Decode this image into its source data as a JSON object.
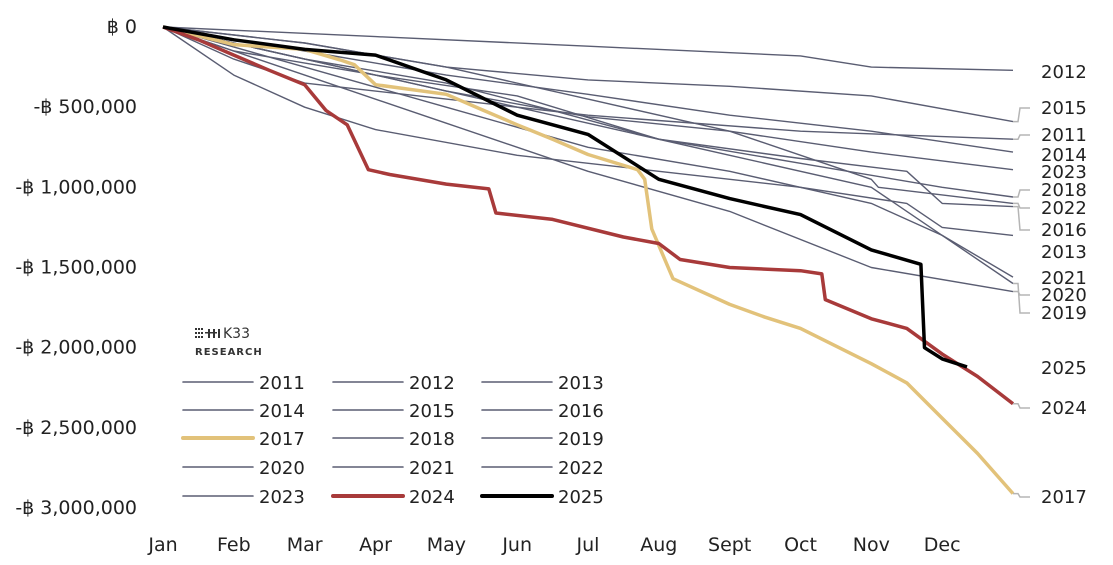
{
  "chart_data": {
    "type": "line",
    "title": "",
    "xlabel": "",
    "ylabel": "",
    "x_unit": "month (0 = start of Jan, 12 = end of Dec)",
    "x_tick_labels": [
      "Jan",
      "Feb",
      "Mar",
      "Apr",
      "May",
      "Jun",
      "Jul",
      "Aug",
      "Sept",
      "Oct",
      "Nov",
      "Dec"
    ],
    "y_tick_values": [
      0,
      -500000,
      -1000000,
      -1500000,
      -2000000,
      -2500000,
      -3000000
    ],
    "y_tick_labels": [
      "฿ 0",
      "-฿ 500,000",
      "-฿ 1,000,000",
      "-฿ 1,500,000",
      "-฿ 2,000,000",
      "-฿ 2,500,000",
      "-฿ 3,000,000"
    ],
    "ylim": [
      -3000000,
      0
    ],
    "xlim": [
      0,
      12
    ],
    "grid": false,
    "legend_position": "bottom-left",
    "logo_text": "K33 RESEARCH",
    "colors": {
      "default": "#5a5d72",
      "2017": "#e2c27a",
      "2024": "#a83a3a",
      "2025": "#000000",
      "leader": "#b5b5b5"
    },
    "series": [
      {
        "name": "2011",
        "points": [
          [
            0,
            0
          ],
          [
            1,
            -200000
          ],
          [
            2,
            -350000
          ],
          [
            4,
            -450000
          ],
          [
            6,
            -550000
          ],
          [
            9,
            -650000
          ],
          [
            12,
            -700000
          ]
        ]
      },
      {
        "name": "2012",
        "points": [
          [
            0,
            0
          ],
          [
            3,
            -60000
          ],
          [
            6,
            -120000
          ],
          [
            9,
            -180000
          ],
          [
            10,
            -250000
          ],
          [
            12,
            -270000
          ]
        ]
      },
      {
        "name": "2013",
        "points": [
          [
            0,
            0
          ],
          [
            1,
            -300000
          ],
          [
            2,
            -500000
          ],
          [
            3,
            -640000
          ],
          [
            5,
            -800000
          ],
          [
            7,
            -900000
          ],
          [
            9,
            -1000000
          ],
          [
            10.5,
            -1100000
          ],
          [
            11,
            -1250000
          ],
          [
            12,
            -1300000
          ]
        ]
      },
      {
        "name": "2014",
        "points": [
          [
            0,
            0
          ],
          [
            2,
            -150000
          ],
          [
            4,
            -300000
          ],
          [
            6,
            -420000
          ],
          [
            8,
            -550000
          ],
          [
            10,
            -650000
          ],
          [
            12,
            -780000
          ]
        ]
      },
      {
        "name": "2015",
        "points": [
          [
            0,
            0
          ],
          [
            2,
            -100000
          ],
          [
            4,
            -250000
          ],
          [
            6,
            -330000
          ],
          [
            8,
            -370000
          ],
          [
            10,
            -430000
          ],
          [
            12,
            -590000
          ]
        ]
      },
      {
        "name": "2016",
        "points": [
          [
            0,
            0
          ],
          [
            2,
            -200000
          ],
          [
            4,
            -350000
          ],
          [
            5.5,
            -520000
          ],
          [
            7,
            -700000
          ],
          [
            9,
            -820000
          ],
          [
            10.5,
            -900000
          ],
          [
            11,
            -1100000
          ],
          [
            12,
            -1120000
          ]
        ]
      },
      {
        "name": "2017",
        "points": [
          [
            0,
            0
          ],
          [
            1,
            -110000
          ],
          [
            2,
            -140000
          ],
          [
            2.5,
            -205000
          ],
          [
            2.7,
            -235000
          ],
          [
            3,
            -360000
          ],
          [
            4,
            -420000
          ],
          [
            4.5,
            -515000
          ],
          [
            5,
            -610000
          ],
          [
            5.5,
            -700000
          ],
          [
            6,
            -795000
          ],
          [
            6.7,
            -890000
          ],
          [
            6.8,
            -950000
          ],
          [
            6.9,
            -1260000
          ],
          [
            7.2,
            -1570000
          ],
          [
            8,
            -1730000
          ],
          [
            8.5,
            -1810000
          ],
          [
            9,
            -1880000
          ],
          [
            10,
            -2100000
          ],
          [
            10.5,
            -2220000
          ],
          [
            11,
            -2440000
          ],
          [
            11.5,
            -2660000
          ],
          [
            12,
            -2910000
          ]
        ]
      },
      {
        "name": "2018",
        "points": [
          [
            0,
            0
          ],
          [
            1,
            -150000
          ],
          [
            3,
            -300000
          ],
          [
            5,
            -430000
          ],
          [
            7,
            -700000
          ],
          [
            9,
            -850000
          ],
          [
            11,
            -1000000
          ],
          [
            12,
            -1060000
          ]
        ]
      },
      {
        "name": "2019",
        "points": [
          [
            0,
            0
          ],
          [
            2,
            -200000
          ],
          [
            4,
            -400000
          ],
          [
            6,
            -600000
          ],
          [
            8,
            -800000
          ],
          [
            10,
            -1000000
          ],
          [
            11,
            -1300000
          ],
          [
            12,
            -1600000
          ]
        ]
      },
      {
        "name": "2020",
        "points": [
          [
            0,
            0
          ],
          [
            2,
            -300000
          ],
          [
            4,
            -600000
          ],
          [
            6,
            -900000
          ],
          [
            8,
            -1150000
          ],
          [
            10,
            -1500000
          ],
          [
            12,
            -1650000
          ]
        ]
      },
      {
        "name": "2021",
        "points": [
          [
            0,
            0
          ],
          [
            2,
            -250000
          ],
          [
            4,
            -500000
          ],
          [
            6,
            -750000
          ],
          [
            8,
            -900000
          ],
          [
            10,
            -1100000
          ],
          [
            11,
            -1300000
          ],
          [
            12,
            -1560000
          ]
        ]
      },
      {
        "name": "2022",
        "points": [
          [
            0,
            0
          ],
          [
            2,
            -200000
          ],
          [
            4,
            -400000
          ],
          [
            6,
            -560000
          ],
          [
            8,
            -650000
          ],
          [
            10,
            -950000
          ],
          [
            10.1,
            -1000000
          ],
          [
            12,
            -1100000
          ]
        ]
      },
      {
        "name": "2023",
        "points": [
          [
            0,
            0
          ],
          [
            2,
            -100000
          ],
          [
            4,
            -250000
          ],
          [
            6,
            -450000
          ],
          [
            8,
            -650000
          ],
          [
            10,
            -780000
          ],
          [
            12,
            -890000
          ]
        ]
      },
      {
        "name": "2024",
        "points": [
          [
            0,
            0
          ],
          [
            0.5,
            -80000
          ],
          [
            1,
            -175000
          ],
          [
            1.5,
            -270000
          ],
          [
            2,
            -360000
          ],
          [
            2.3,
            -520000
          ],
          [
            2.6,
            -610000
          ],
          [
            2.9,
            -890000
          ],
          [
            3.2,
            -920000
          ],
          [
            4,
            -980000
          ],
          [
            4.6,
            -1010000
          ],
          [
            4.7,
            -1160000
          ],
          [
            5.5,
            -1200000
          ],
          [
            6.5,
            -1310000
          ],
          [
            7,
            -1350000
          ],
          [
            7.3,
            -1450000
          ],
          [
            8,
            -1500000
          ],
          [
            9,
            -1520000
          ],
          [
            9.3,
            -1540000
          ],
          [
            9.35,
            -1700000
          ],
          [
            10,
            -1820000
          ],
          [
            10.5,
            -1880000
          ],
          [
            11,
            -2040000
          ],
          [
            11.5,
            -2180000
          ],
          [
            12,
            -2350000
          ]
        ]
      },
      {
        "name": "2025",
        "points": [
          [
            0,
            0
          ],
          [
            1,
            -80000
          ],
          [
            2,
            -140000
          ],
          [
            3,
            -175000
          ],
          [
            4,
            -330000
          ],
          [
            5,
            -550000
          ],
          [
            6,
            -670000
          ],
          [
            7,
            -950000
          ],
          [
            8,
            -1070000
          ],
          [
            9,
            -1170000
          ],
          [
            10,
            -1390000
          ],
          [
            10.7,
            -1480000
          ],
          [
            10.75,
            -2000000
          ],
          [
            11,
            -2070000
          ],
          [
            11.35,
            -2120000
          ]
        ]
      }
    ]
  }
}
